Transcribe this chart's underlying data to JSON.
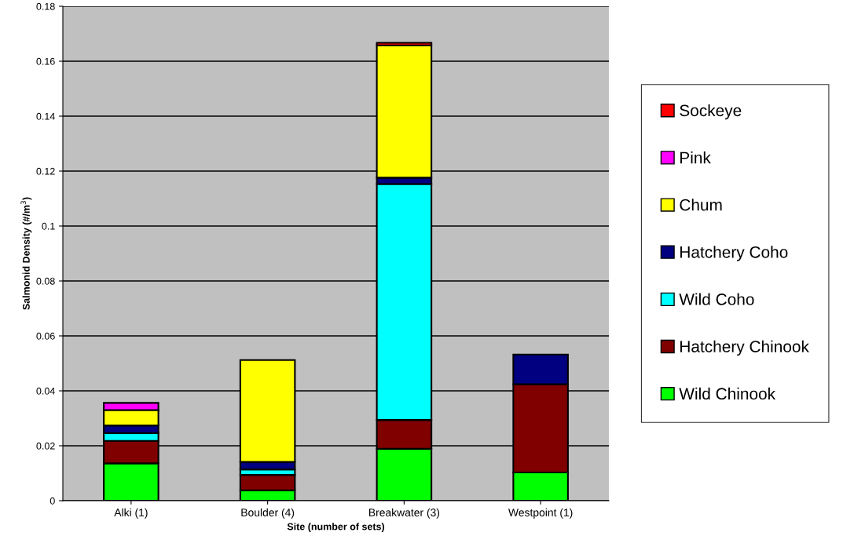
{
  "chart_data": {
    "type": "bar",
    "stacked": true,
    "categories": [
      "Alki (1)",
      "Boulder (4)",
      "Breakwater (3)",
      "Westpoint (1)"
    ],
    "xlabel": "Site (number of sets)",
    "ylabel": "Salmonid Density (#/m$^{3}$)",
    "ylim": [
      0,
      0.18
    ],
    "yticks": [
      0,
      0.02,
      0.04,
      0.06,
      0.08,
      0.1,
      0.12,
      0.14,
      0.16,
      0.18
    ],
    "grid": "y",
    "legend": "right",
    "series": [
      {
        "name": "Wild Chinook",
        "color": "#00ff00",
        "values": [
          0.0136,
          0.0038,
          0.0189,
          0.0103
        ]
      },
      {
        "name": "Hatchery Chinook",
        "color": "#800000",
        "values": [
          0.0082,
          0.0056,
          0.0105,
          0.0321
        ]
      },
      {
        "name": "Wild Coho",
        "color": "#00ffff",
        "values": [
          0.0028,
          0.002,
          0.0859,
          null
        ]
      },
      {
        "name": "Hatchery Coho",
        "color": "#000080",
        "values": [
          0.0028,
          0.0027,
          0.0023,
          0.0108
        ]
      },
      {
        "name": "Chum",
        "color": "#ffff00",
        "values": [
          0.0056,
          0.0371,
          0.0482,
          null
        ]
      },
      {
        "name": "Pink",
        "color": "#ff00ff",
        "values": [
          0.0026,
          null,
          null,
          null
        ]
      },
      {
        "name": "Sockeye",
        "color": "#ff0000",
        "values": [
          null,
          null,
          0.0009,
          null
        ]
      }
    ]
  }
}
